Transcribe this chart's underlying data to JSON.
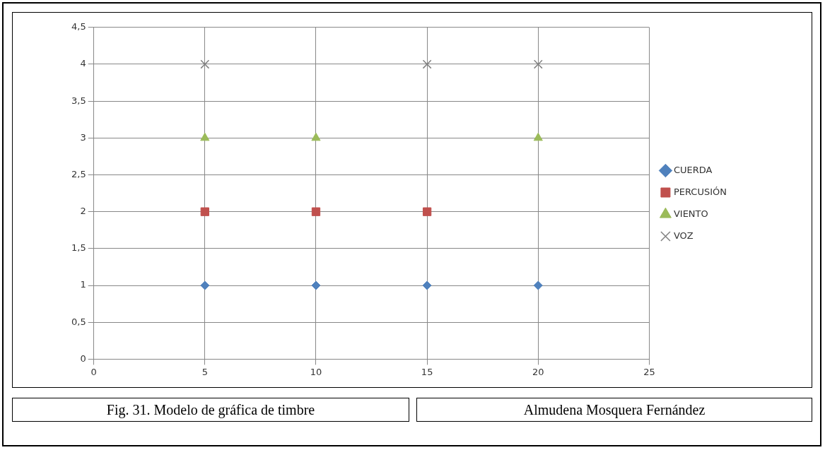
{
  "chart_data": {
    "type": "scatter",
    "series": [
      {
        "name": "CUERDA",
        "color": "#4f81bd",
        "marker": "diamond",
        "x": [
          5,
          10,
          15,
          20
        ],
        "values": [
          1,
          1,
          1,
          1
        ]
      },
      {
        "name": "PERCUSIÓN",
        "color": "#c0504d",
        "marker": "square",
        "x": [
          5,
          10,
          15
        ],
        "values": [
          2,
          2,
          2
        ]
      },
      {
        "name": "VIENTO",
        "color": "#9bbb59",
        "marker": "triangle",
        "x": [
          5,
          10,
          20
        ],
        "values": [
          3,
          3,
          3
        ]
      },
      {
        "name": "VOZ",
        "color": "#808080",
        "marker": "cross",
        "x": [
          5,
          15,
          20
        ],
        "values": [
          4,
          4,
          4
        ]
      }
    ],
    "xlim": [
      0,
      25
    ],
    "xticks": [
      0,
      5,
      10,
      15,
      20,
      25
    ],
    "ylim": [
      0,
      4.5
    ],
    "yticks": [
      0,
      {
        "value": 0.5,
        "label": "0,5"
      },
      1,
      {
        "value": 1.5,
        "label": "1,5"
      },
      2,
      {
        "value": 2.5,
        "label": "2,5"
      },
      3,
      {
        "value": 3.5,
        "label": "3,5"
      },
      4,
      {
        "value": 4.5,
        "label": "4,5"
      }
    ],
    "grid": true,
    "legend": "right",
    "annotations": [
      "Fig. 31. Modelo de gráfica de timbre",
      "Almudena Mosquera Fernández"
    ]
  }
}
